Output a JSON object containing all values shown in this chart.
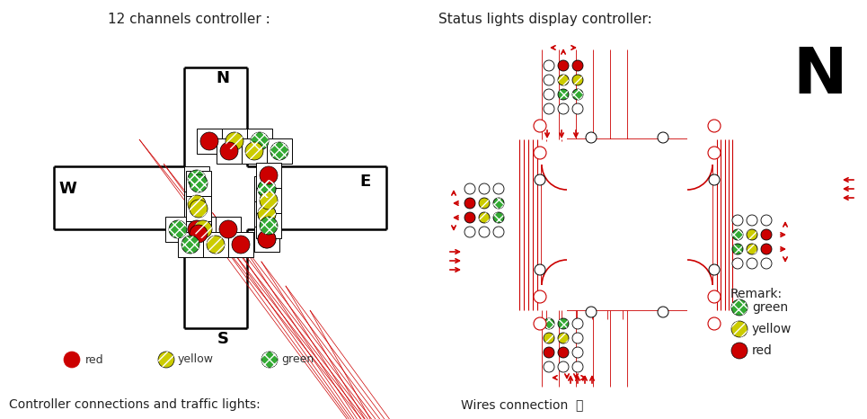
{
  "title_left": "12 channels controller :",
  "title_right": "Status lights display controller:",
  "bottom_left": "Controller connections and traffic lights:",
  "bottom_right": "Wires connection ：",
  "bg_color": "#ffffff",
  "road_color": "#000000",
  "red_color": "#cc0000",
  "yellow_color": "#cccc00",
  "green_color": "#33aa33",
  "wire_color": "#cc0000"
}
